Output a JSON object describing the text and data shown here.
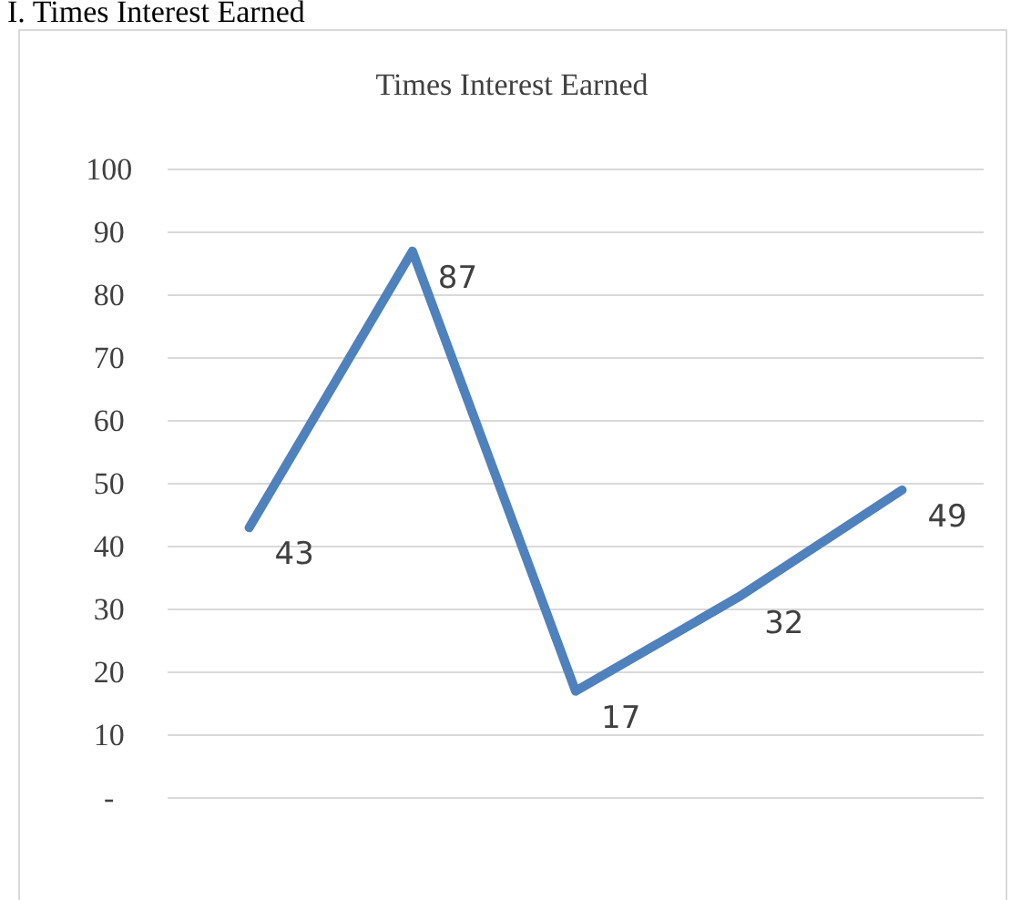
{
  "chart_data": {
    "type": "line",
    "title": "Times Interest Earned",
    "annotations": [
      "I. Times Interest Earned"
    ],
    "categories": [
      null,
      null,
      null,
      null,
      null
    ],
    "series": [
      {
        "color": "#4f81bd",
        "values": [
          43,
          87,
          17,
          32,
          49
        ]
      }
    ],
    "ylim": [
      0,
      100
    ],
    "yticks": [
      {
        "value": 0,
        "label": "-"
      },
      10,
      20,
      30,
      40,
      50,
      60,
      70,
      80,
      90,
      100
    ],
    "grid": "y",
    "marker": "none",
    "line_style": "solid",
    "data_labels": true
  }
}
